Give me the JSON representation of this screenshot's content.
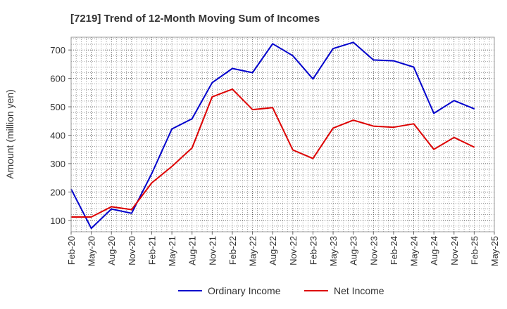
{
  "chart_data": {
    "type": "line",
    "title": "[7219]  Trend of 12-Month Moving Sum of Incomes",
    "xlabel": "",
    "ylabel": "Amount (million yen)",
    "ylim": [
      60,
      745
    ],
    "yticks": [
      100,
      200,
      300,
      400,
      500,
      600,
      700
    ],
    "grid": true,
    "legend_position": "bottom",
    "x_tick_labels": [
      "Feb-20",
      "May-20",
      "Aug-20",
      "Nov-20",
      "Feb-21",
      "May-21",
      "Aug-21",
      "Nov-21",
      "Feb-22",
      "May-22",
      "Aug-22",
      "Nov-22",
      "Feb-23",
      "May-23",
      "Aug-23",
      "Nov-23",
      "Feb-24",
      "May-24",
      "Aug-24",
      "Nov-24",
      "Feb-25",
      "May-25"
    ],
    "categories": [
      "Feb-20",
      "May-20",
      "Aug-20",
      "Nov-20",
      "Feb-21",
      "May-21",
      "Aug-21",
      "Nov-21",
      "Feb-22",
      "May-22",
      "Aug-22",
      "Nov-22",
      "Feb-23",
      "May-23",
      "Aug-23",
      "Nov-23",
      "Feb-24",
      "May-24",
      "Aug-24",
      "Nov-24",
      "Feb-25"
    ],
    "series": [
      {
        "name": "Ordinary Income",
        "color": "#0000cc",
        "values": [
          210,
          72,
          140,
          125,
          265,
          422,
          458,
          585,
          635,
          620,
          722,
          680,
          598,
          705,
          727,
          665,
          662,
          640,
          477,
          522,
          493
        ]
      },
      {
        "name": "Net Income",
        "color": "#dd0000",
        "values": [
          112,
          112,
          148,
          138,
          232,
          290,
          355,
          535,
          562,
          490,
          497,
          348,
          318,
          425,
          453,
          432,
          428,
          440,
          350,
          392,
          358
        ]
      }
    ]
  }
}
